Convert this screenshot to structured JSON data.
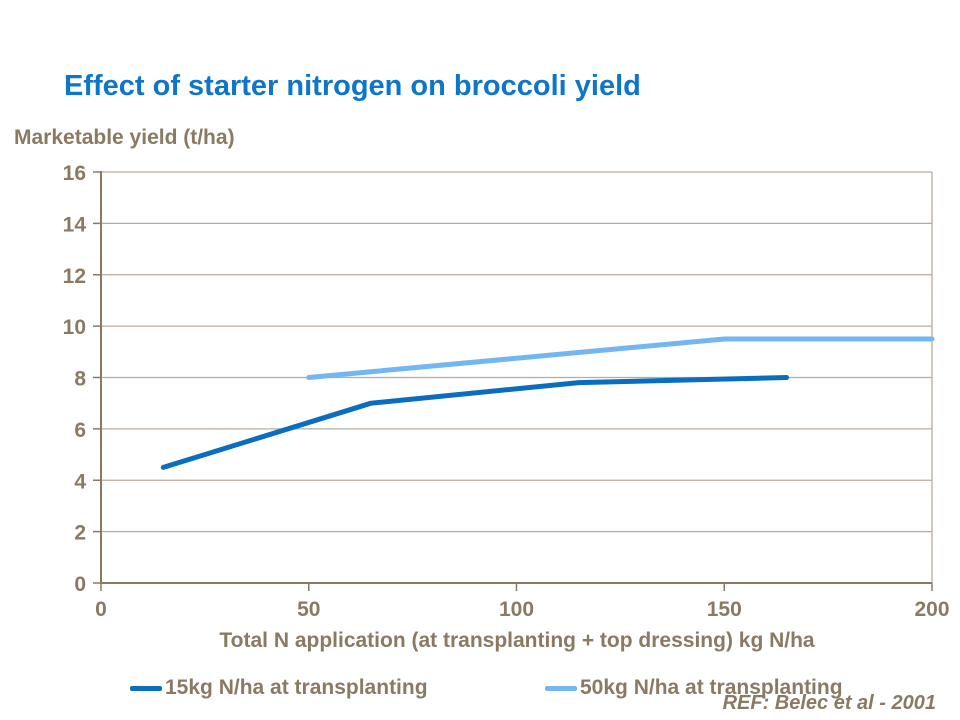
{
  "slide": {
    "title": "Effect of starter nitrogen on broccoli yield",
    "ref_note": "REF: Belec et al - 2001"
  },
  "colors": {
    "title_text": "#0e76c8",
    "axis_text": "#8a7a64",
    "axis_line": "#8a7a64",
    "gridline": "#b8ac9c",
    "series_dark_blue": "#0a6dbe",
    "series_light_blue": "#73b6f2",
    "background": "#ffffff"
  },
  "chart_data": {
    "type": "line",
    "title": "Effect of starter nitrogen on broccoli yield",
    "xlabel": "Total N application (at transplanting + top dressing) kg N/ha",
    "ylabel": "Marketable yield (t/ha)",
    "xlim": [
      0,
      200
    ],
    "ylim": [
      0,
      16
    ],
    "x_ticks": [
      0,
      50,
      100,
      150,
      200
    ],
    "y_ticks": [
      0,
      2,
      4,
      6,
      8,
      10,
      12,
      14,
      16
    ],
    "grid": "horizontal",
    "legend_position": "bottom",
    "series": [
      {
        "name": "15kg N/ha at transplanting",
        "color": "#0a6dbe",
        "x": [
          15,
          65,
          115,
          165
        ],
        "y": [
          4.5,
          7.0,
          7.8,
          8.0
        ]
      },
      {
        "name": "50kg N/ha at transplanting",
        "color": "#73b6f2",
        "x": [
          50,
          100,
          150,
          200
        ],
        "y": [
          8.0,
          8.75,
          9.5,
          9.5
        ]
      }
    ],
    "annotation": "REF: Belec et al - 2001"
  }
}
